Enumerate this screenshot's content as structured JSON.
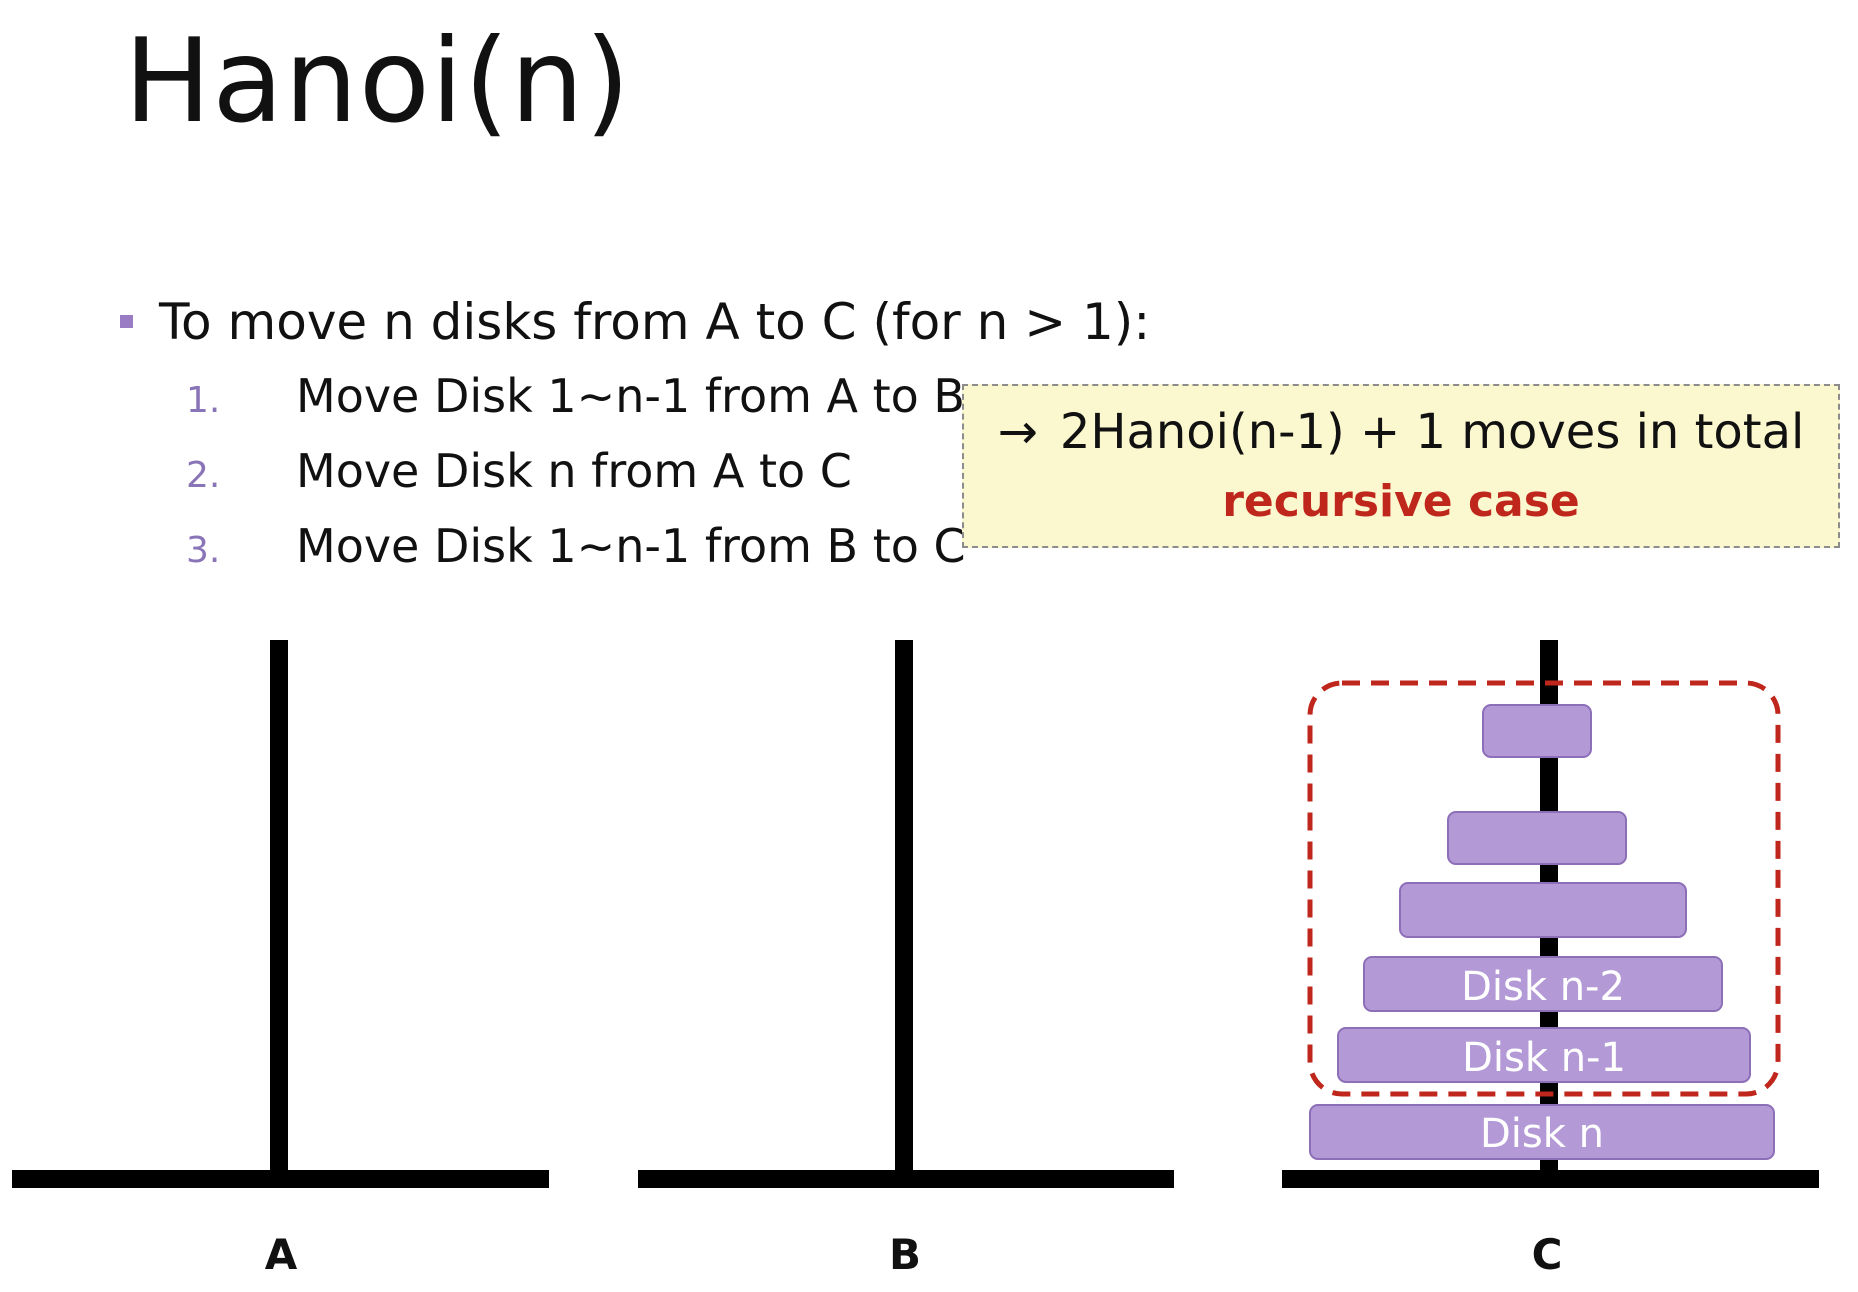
{
  "title": "Hanoi(n)",
  "bullet": "To move n disks from A to C (for n > 1):",
  "steps": [
    {
      "num": "1.",
      "text": "Move Disk 1~n-1 from A to B"
    },
    {
      "num": "2.",
      "text": "Move Disk n from A to C"
    },
    {
      "num": "3.",
      "text": "Move Disk 1~n-1 from B to C"
    }
  ],
  "callout": {
    "arrow": "→",
    "line1": "2Hanoi(n-1) + 1 moves in total",
    "line2": "recursive case"
  },
  "pegs": [
    {
      "label": "A"
    },
    {
      "label": "B"
    },
    {
      "label": "C"
    }
  ],
  "disks_on_C": [
    {
      "label": ""
    },
    {
      "label": ""
    },
    {
      "label": ""
    },
    {
      "label": "Disk n-2"
    },
    {
      "label": "Disk n-1"
    },
    {
      "label": "Disk n"
    }
  ],
  "colors": {
    "disk_fill": "#b39ad6",
    "disk_stroke": "#8d6fb8",
    "highlight_dash": "#c0271c",
    "peg": "#000000",
    "callout_bg": "#fbf8cf"
  }
}
